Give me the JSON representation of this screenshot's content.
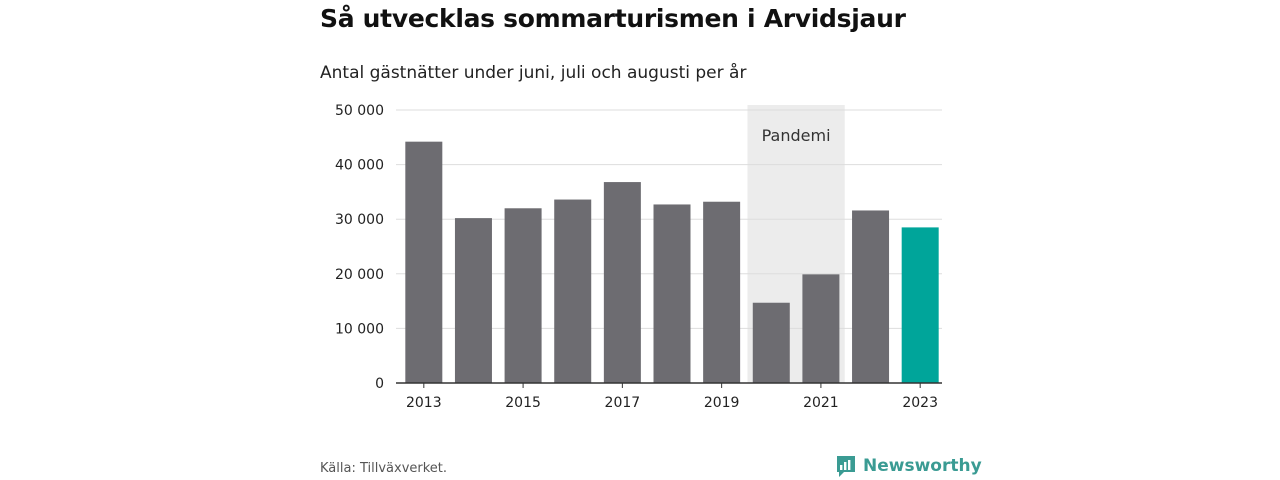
{
  "title": "Så utvecklas sommarturismen i Arvidsjaur",
  "subtitle": "Antal gästnätter under juni, juli och augusti per år",
  "source": "Källa: Tillväxverket.",
  "brand": {
    "name": "Newsworthy",
    "icon": "newsworthy-logo-icon",
    "color": "#3a9b93"
  },
  "chart_data": {
    "type": "bar",
    "categories": [
      "2013",
      "2014",
      "2015",
      "2016",
      "2017",
      "2018",
      "2019",
      "2020",
      "2021",
      "2022",
      "2023"
    ],
    "values": [
      44200,
      30200,
      32000,
      33600,
      36800,
      32700,
      33200,
      14700,
      19900,
      31600,
      28500
    ],
    "x_tick_labels": [
      "2013",
      "2015",
      "2017",
      "2019",
      "2021",
      "2023"
    ],
    "y_ticks": [
      0,
      10000,
      20000,
      30000,
      40000,
      50000
    ],
    "y_tick_labels": [
      "0",
      "10 000",
      "20 000",
      "30 000",
      "40 000",
      "50 000"
    ],
    "ylim": [
      0,
      50000
    ],
    "grid": true,
    "colors": {
      "default": "#6d6c71",
      "highlight": "#00a59a",
      "shade": "#ececec",
      "grid": "#dddddd",
      "axis": "#333333"
    },
    "highlight_category": "2023",
    "annotation": {
      "label": "Pandemi",
      "from": "2020",
      "to": "2021"
    }
  }
}
